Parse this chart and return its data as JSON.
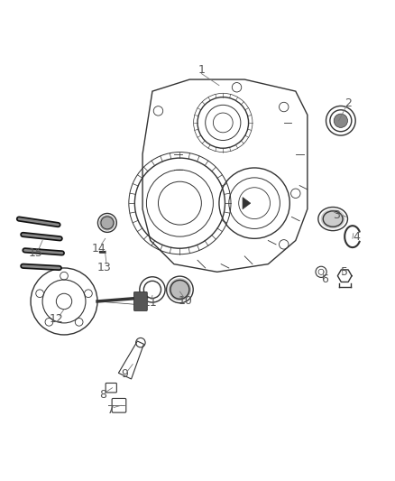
{
  "title": "",
  "background_color": "#ffffff",
  "part_numbers": [
    1,
    2,
    3,
    4,
    5,
    6,
    7,
    8,
    9,
    10,
    11,
    12,
    13,
    14,
    15
  ],
  "line_color": "#333333",
  "label_color": "#555555",
  "font_size": 9
}
